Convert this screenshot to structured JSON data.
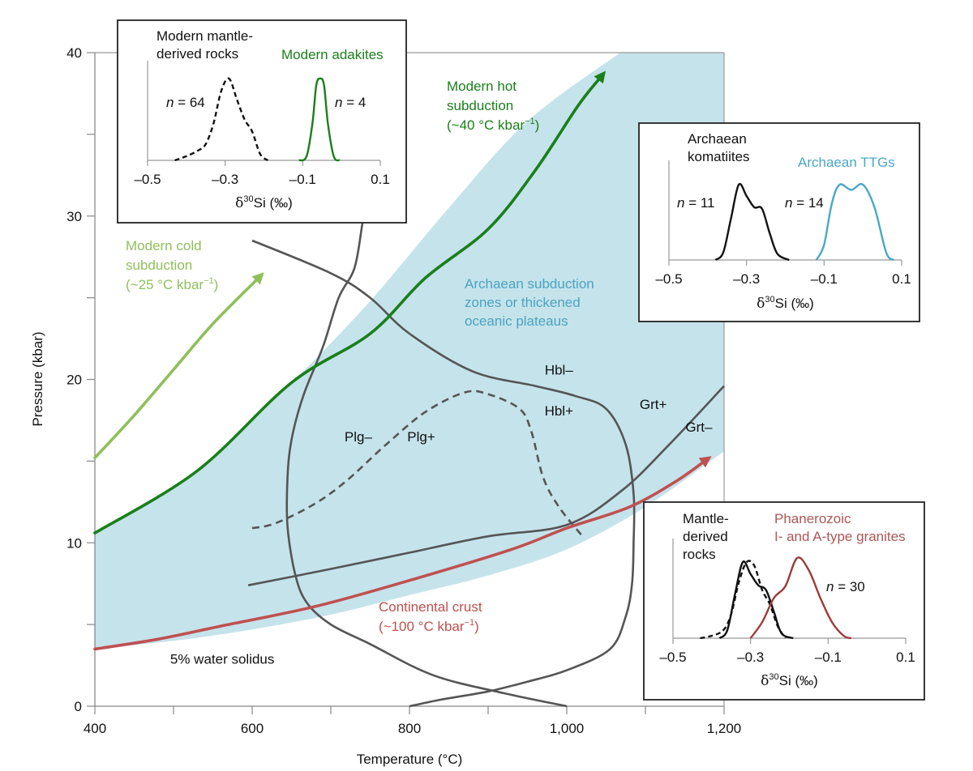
{
  "chart_data": {
    "type": "line",
    "title": "",
    "xlabel": "Temperature (°C)",
    "ylabel": "Pressure (kbar)",
    "xlim": [
      400,
      1200
    ],
    "ylim": [
      0,
      40
    ],
    "x_ticks": [
      400,
      500,
      600,
      700,
      800,
      900,
      1000,
      1100,
      1200
    ],
    "x_tick_labels": [
      "400",
      "",
      "600",
      "",
      "800",
      "",
      "1,000",
      "",
      "1,200"
    ],
    "y_ticks": [
      0,
      5,
      10,
      15,
      20,
      25,
      30,
      35,
      40
    ],
    "y_tick_labels": [
      "0",
      "",
      "10",
      "",
      "20",
      "",
      "30",
      "",
      "40"
    ],
    "colors": {
      "hot": "#1a7f1a",
      "cold": "#8fbf5a",
      "crust": "#c05050",
      "archaean_fill": "#c5e3eb",
      "archaean_text": "#4aa3c0",
      "phase": "#555555"
    },
    "region": {
      "name": "Archaean subduction zones or thickened oceanic plateaus",
      "lines": [
        "Archaean subduction",
        "zones or thickened",
        "oceanic plateaus"
      ],
      "upper": [
        [
          400,
          10.6
        ],
        [
          530,
          14.4
        ],
        [
          650,
          19.8
        ],
        [
          750,
          24.8
        ],
        [
          850,
          30.5
        ],
        [
          950,
          35.8
        ],
        [
          1068,
          40
        ]
      ],
      "lower": [
        [
          1200,
          15.6
        ],
        [
          1100,
          12.2
        ],
        [
          1000,
          9.6
        ],
        [
          900,
          8.0
        ],
        [
          800,
          6.8
        ],
        [
          700,
          5.6
        ],
        [
          600,
          4.7
        ],
        [
          500,
          4.0
        ],
        [
          400,
          3.5
        ]
      ]
    },
    "series": [
      {
        "name": "Modern hot subduction",
        "label_lines": [
          "Modern hot",
          "subduction",
          "(~40 °C kbar",
          "−1",
          ")"
        ],
        "arrow": true,
        "points": [
          [
            400,
            10.6
          ],
          [
            530,
            14.4
          ],
          [
            650,
            19.8
          ],
          [
            750,
            22.8
          ],
          [
            820,
            26.2
          ],
          [
            900,
            29.2
          ],
          [
            960,
            32.8
          ],
          [
            1015,
            36.8
          ],
          [
            1045,
            38.6
          ]
        ]
      },
      {
        "name": "Modern cold subduction",
        "label_lines": [
          "Modern cold",
          "subduction",
          "(~25 °C kbar",
          "−1",
          ")"
        ],
        "arrow": true,
        "points": [
          [
            400,
            15.2
          ],
          [
            450,
            17.8
          ],
          [
            500,
            20.6
          ],
          [
            550,
            23.4
          ],
          [
            610,
            26.3
          ]
        ]
      },
      {
        "name": "Continental crust",
        "label_lines": [
          "Continental crust",
          "(~100 °C kbar",
          "−1",
          ")"
        ],
        "arrow": true,
        "points": [
          [
            400,
            3.5
          ],
          [
            480,
            4.1
          ],
          [
            560,
            4.9
          ],
          [
            680,
            6.1
          ],
          [
            800,
            7.7
          ],
          [
            930,
            9.6
          ],
          [
            1000,
            10.9
          ],
          [
            1080,
            12.2
          ],
          [
            1140,
            13.8
          ],
          [
            1178,
            15.1
          ]
        ]
      }
    ],
    "phase_boundaries": [
      {
        "name": "5% water solidus",
        "style": "solid",
        "points": [
          [
            1000,
            0
          ],
          [
            920,
            0.8
          ],
          [
            830,
            1.9
          ],
          [
            750,
            3.8
          ],
          [
            700,
            5.0
          ],
          [
            670,
            6.3
          ],
          [
            655,
            8.0
          ],
          [
            645,
            11.0
          ],
          [
            645,
            14.0
          ],
          [
            650,
            16.3
          ],
          [
            665,
            19.0
          ],
          [
            690,
            22.0
          ],
          [
            710,
            25.0
          ],
          [
            730,
            26.8
          ],
          [
            740,
            29.5
          ],
          [
            748,
            32.0
          ]
        ]
      },
      {
        "name": "Hbl boundary",
        "style": "solid",
        "points": [
          [
            600,
            28.5
          ],
          [
            700,
            26.5
          ],
          [
            750,
            25.0
          ],
          [
            800,
            22.8
          ],
          [
            880,
            20.5
          ],
          [
            960,
            19.6
          ],
          [
            1010,
            19.0
          ],
          [
            1050,
            18.2
          ],
          [
            1075,
            16.0
          ],
          [
            1085,
            13.0
          ],
          [
            1085,
            10.0
          ],
          [
            1083,
            7.5
          ],
          [
            1075,
            5.5
          ],
          [
            1055,
            3.5
          ],
          [
            1000,
            2.2
          ],
          [
            950,
            1.5
          ],
          [
            900,
            0.9
          ],
          [
            840,
            0.4
          ],
          [
            800,
            0
          ]
        ]
      },
      {
        "name": "Plg boundary",
        "style": "dashed",
        "points": [
          [
            600,
            10.9
          ],
          [
            630,
            11.2
          ],
          [
            680,
            12.4
          ],
          [
            720,
            13.8
          ],
          [
            770,
            16.0
          ],
          [
            820,
            18.0
          ],
          [
            870,
            19.2
          ],
          [
            900,
            19.1
          ],
          [
            940,
            18.2
          ],
          [
            955,
            16.8
          ],
          [
            970,
            14.0
          ],
          [
            990,
            12.2
          ],
          [
            1020,
            10.4
          ]
        ]
      },
      {
        "name": "Grt boundary",
        "style": "solid",
        "points": [
          [
            595,
            7.4
          ],
          [
            700,
            8.4
          ],
          [
            800,
            9.4
          ],
          [
            900,
            10.4
          ],
          [
            1000,
            11.1
          ],
          [
            1070,
            13.2
          ],
          [
            1130,
            16.0
          ],
          [
            1200,
            19.6
          ]
        ]
      }
    ],
    "phase_labels": [
      {
        "text": "Hbl–",
        "T": 990,
        "P": 20.3
      },
      {
        "text": "Hbl+",
        "T": 990,
        "P": 17.8
      },
      {
        "text": "Plg–",
        "T": 735,
        "P": 16.2
      },
      {
        "text": "Plg+",
        "T": 815,
        "P": 16.2
      },
      {
        "text": "Grt+",
        "T": 1110,
        "P": 18.2
      },
      {
        "text": "Grt–",
        "T": 1168,
        "P": 16.8
      },
      {
        "text": "5% water solidus",
        "T": 562,
        "P": 2.6
      }
    ],
    "insets": [
      {
        "name": "Modern",
        "xlabel": "δ30Si (‰)",
        "xlabel_main": "δ",
        "xlabel_sup": "30",
        "xlabel_rest": "Si (‰)",
        "xlim": [
          -0.5,
          0.1
        ],
        "x_ticks": [
          -0.5,
          -0.3,
          -0.1,
          0.1
        ],
        "x_tick_labels": [
          "–0.5",
          "–0.3",
          "–0.1",
          "0.1"
        ],
        "labels": [
          {
            "lines": [
              "Modern mantle-",
              "derived rocks"
            ],
            "color": "#111111"
          },
          {
            "lines": [
              "Modern adakites"
            ],
            "color": "#1a7f1a"
          }
        ],
        "n_labels": [
          {
            "n": "n",
            "rest": " = 64"
          },
          {
            "n": "n",
            "rest": " = 4"
          }
        ],
        "series": [
          {
            "name": "Modern mantle-derived rocks",
            "n": 64,
            "color": "#111111",
            "dashed": true,
            "points": [
              [
                -0.43,
                0.0
              ],
              [
                -0.4,
                0.05
              ],
              [
                -0.37,
                0.12
              ],
              [
                -0.35,
                0.2
              ],
              [
                -0.33,
                0.45
              ],
              [
                -0.31,
                0.85
              ],
              [
                -0.29,
                1.0
              ],
              [
                -0.27,
                0.75
              ],
              [
                -0.25,
                0.5
              ],
              [
                -0.23,
                0.35
              ],
              [
                -0.21,
                0.08
              ],
              [
                -0.19,
                0.0
              ]
            ]
          },
          {
            "name": "Modern adakites",
            "n": 4,
            "color": "#1a7f1a",
            "dashed": false,
            "points": [
              [
                -0.11,
                0.0
              ],
              [
                -0.09,
                0.05
              ],
              [
                -0.075,
                0.45
              ],
              [
                -0.065,
                0.92
              ],
              [
                -0.055,
                1.0
              ],
              [
                -0.045,
                0.92
              ],
              [
                -0.035,
                0.45
              ],
              [
                -0.02,
                0.05
              ],
              [
                -0.005,
                0.0
              ]
            ]
          }
        ]
      },
      {
        "name": "Archaean",
        "xlabel": "δ30Si (‰)",
        "xlabel_main": "δ",
        "xlabel_sup": "30",
        "xlabel_rest": "Si (‰)",
        "xlim": [
          -0.5,
          0.1
        ],
        "x_ticks": [
          -0.5,
          -0.3,
          -0.1,
          0.1
        ],
        "x_tick_labels": [
          "–0.5",
          "–0.3",
          "–0.1",
          "0.1"
        ],
        "labels": [
          {
            "lines": [
              "Archaean",
              "komatiites"
            ],
            "color": "#111111"
          },
          {
            "lines": [
              "Archaean TTGs"
            ],
            "color": "#4aa8c3"
          }
        ],
        "n_labels": [
          {
            "n": "n",
            "rest": " = 11"
          },
          {
            "n": "n",
            "rest": " = 14"
          }
        ],
        "series": [
          {
            "name": "Archaean komatiites",
            "n": 11,
            "color": "#111111",
            "dashed": false,
            "points": [
              [
                -0.38,
                0.0
              ],
              [
                -0.36,
                0.1
              ],
              [
                -0.34,
                0.55
              ],
              [
                -0.32,
                1.0
              ],
              [
                -0.3,
                0.85
              ],
              [
                -0.28,
                0.7
              ],
              [
                -0.26,
                0.68
              ],
              [
                -0.24,
                0.35
              ],
              [
                -0.22,
                0.08
              ],
              [
                -0.19,
                0.0
              ]
            ]
          },
          {
            "name": "Archaean TTGs",
            "n": 14,
            "color": "#4aa8c3",
            "dashed": false,
            "points": [
              [
                -0.12,
                0.0
              ],
              [
                -0.1,
                0.2
              ],
              [
                -0.08,
                0.75
              ],
              [
                -0.06,
                1.0
              ],
              [
                -0.03,
                0.93
              ],
              [
                0.0,
                1.0
              ],
              [
                0.03,
                0.7
              ],
              [
                0.06,
                0.1
              ],
              [
                0.08,
                0.0
              ]
            ]
          }
        ]
      },
      {
        "name": "Phanerozoic",
        "xlabel": "δ30Si (‰)",
        "xlabel_main": "δ",
        "xlabel_sup": "30",
        "xlabel_rest": "Si (‰)",
        "xlim": [
          -0.5,
          0.1
        ],
        "x_ticks": [
          -0.5,
          -0.3,
          -0.1,
          0.1
        ],
        "x_tick_labels": [
          "–0.5",
          "–0.3",
          "–0.1",
          "0.1"
        ],
        "labels": [
          {
            "lines": [
              "Mantle-",
              "derived",
              "rocks"
            ],
            "color": "#111111"
          },
          {
            "lines": [
              "Phanerozoic",
              "I- and A-type granites"
            ],
            "color": "#b05555"
          }
        ],
        "n_labels": [
          {
            "n": "n",
            "rest": " = 30"
          }
        ],
        "series": [
          {
            "name": "Modern mantle-derived rocks",
            "color": "#111111",
            "dashed": true,
            "points": [
              [
                -0.43,
                0.0
              ],
              [
                -0.4,
                0.03
              ],
              [
                -0.37,
                0.1
              ],
              [
                -0.35,
                0.3
              ],
              [
                -0.33,
                0.7
              ],
              [
                -0.31,
                0.95
              ],
              [
                -0.29,
                0.9
              ],
              [
                -0.27,
                0.6
              ],
              [
                -0.25,
                0.42
              ],
              [
                -0.23,
                0.15
              ],
              [
                -0.21,
                0.0
              ]
            ]
          },
          {
            "name": "Archaean komatiites",
            "color": "#111111",
            "dashed": false,
            "points": [
              [
                -0.38,
                0.0
              ],
              [
                -0.36,
                0.1
              ],
              [
                -0.34,
                0.55
              ],
              [
                -0.32,
                0.95
              ],
              [
                -0.3,
                0.8
              ],
              [
                -0.28,
                0.66
              ],
              [
                -0.26,
                0.6
              ],
              [
                -0.24,
                0.33
              ],
              [
                -0.22,
                0.06
              ],
              [
                -0.19,
                0.0
              ]
            ]
          },
          {
            "name": "Phanerozoic I- and A-type granites",
            "n": 30,
            "color": "#9e3b3b",
            "dashed": false,
            "points": [
              [
                -0.3,
                0.0
              ],
              [
                -0.27,
                0.2
              ],
              [
                -0.24,
                0.5
              ],
              [
                -0.21,
                0.65
              ],
              [
                -0.18,
                1.0
              ],
              [
                -0.15,
                0.85
              ],
              [
                -0.12,
                0.5
              ],
              [
                -0.09,
                0.2
              ],
              [
                -0.06,
                0.03
              ],
              [
                -0.04,
                0.0
              ]
            ]
          }
        ]
      }
    ]
  }
}
